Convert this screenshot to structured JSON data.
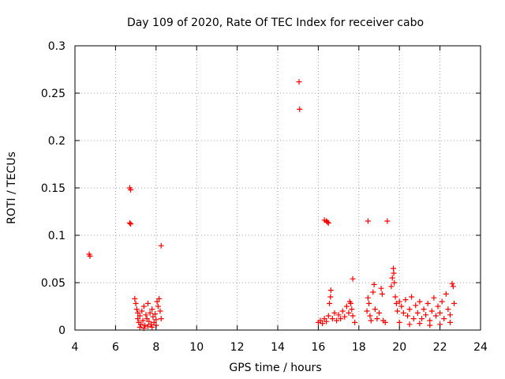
{
  "chart_data": {
    "type": "scatter",
    "title": "Day 109 of 2020, Rate Of TEC Index for receiver cabo",
    "xlabel": "GPS time / hours",
    "ylabel": "ROTI / TECUs",
    "xlim": [
      4,
      24
    ],
    "ylim": [
      0,
      0.3
    ],
    "xticks": [
      4,
      6,
      8,
      10,
      12,
      14,
      16,
      18,
      20,
      22,
      24
    ],
    "xtick_labels": [
      "4",
      "6",
      "8",
      "10",
      "12",
      "14",
      "16",
      "18",
      "20",
      "22",
      "24"
    ],
    "yticks": [
      0,
      0.05,
      0.1,
      0.15,
      0.2,
      0.25,
      0.3
    ],
    "ytick_labels": [
      "0",
      "0.05",
      "0.1",
      "0.15",
      "0.2",
      "0.25",
      "0.3"
    ],
    "grid": true,
    "marker": "+",
    "marker_color": "#ff0000",
    "points": [
      [
        4.7,
        0.08
      ],
      [
        4.74,
        0.078
      ],
      [
        6.7,
        0.15
      ],
      [
        6.75,
        0.148
      ],
      [
        6.7,
        0.113
      ],
      [
        6.75,
        0.112
      ],
      [
        8.25,
        0.089
      ],
      [
        15.05,
        0.262
      ],
      [
        15.08,
        0.233
      ],
      [
        16.3,
        0.116
      ],
      [
        16.4,
        0.115
      ],
      [
        16.45,
        0.114
      ],
      [
        16.5,
        0.113
      ],
      [
        17.7,
        0.054
      ],
      [
        18.45,
        0.115
      ],
      [
        19.4,
        0.115
      ],
      [
        6.95,
        0.033
      ],
      [
        7.0,
        0.028
      ],
      [
        7.05,
        0.022
      ],
      [
        7.1,
        0.018
      ],
      [
        7.1,
        0.012
      ],
      [
        7.15,
        0.008
      ],
      [
        7.2,
        0.015
      ],
      [
        7.25,
        0.006
      ],
      [
        7.3,
        0.02
      ],
      [
        7.35,
        0.01
      ],
      [
        7.4,
        0.025
      ],
      [
        7.45,
        0.005
      ],
      [
        7.5,
        0.016
      ],
      [
        7.55,
        0.012
      ],
      [
        7.6,
        0.028
      ],
      [
        7.65,
        0.009
      ],
      [
        7.7,
        0.018
      ],
      [
        7.75,
        0.006
      ],
      [
        7.8,
        0.022
      ],
      [
        7.85,
        0.014
      ],
      [
        7.9,
        0.008
      ],
      [
        7.95,
        0.017
      ],
      [
        8.0,
        0.011
      ],
      [
        8.05,
        0.03
      ],
      [
        8.1,
        0.025
      ],
      [
        8.15,
        0.033
      ],
      [
        8.2,
        0.02
      ],
      [
        8.25,
        0.012
      ],
      [
        7.2,
        0.003
      ],
      [
        7.4,
        0.002
      ],
      [
        7.6,
        0.004
      ],
      [
        7.8,
        0.003
      ],
      [
        8.0,
        0.005
      ],
      [
        16.0,
        0.008
      ],
      [
        16.1,
        0.01
      ],
      [
        16.2,
        0.007
      ],
      [
        16.3,
        0.012
      ],
      [
        16.4,
        0.009
      ],
      [
        16.5,
        0.015
      ],
      [
        16.55,
        0.028
      ],
      [
        16.6,
        0.035
      ],
      [
        16.62,
        0.042
      ],
      [
        16.7,
        0.012
      ],
      [
        16.8,
        0.018
      ],
      [
        16.9,
        0.01
      ],
      [
        17.0,
        0.016
      ],
      [
        17.1,
        0.012
      ],
      [
        17.2,
        0.02
      ],
      [
        17.3,
        0.014
      ],
      [
        17.4,
        0.025
      ],
      [
        17.5,
        0.018
      ],
      [
        17.55,
        0.03
      ],
      [
        17.6,
        0.028
      ],
      [
        17.65,
        0.022
      ],
      [
        17.7,
        0.015
      ],
      [
        17.8,
        0.008
      ],
      [
        18.4,
        0.02
      ],
      [
        18.45,
        0.034
      ],
      [
        18.5,
        0.028
      ],
      [
        18.55,
        0.015
      ],
      [
        18.6,
        0.01
      ],
      [
        18.7,
        0.04
      ],
      [
        18.75,
        0.048
      ],
      [
        18.8,
        0.022
      ],
      [
        18.9,
        0.012
      ],
      [
        19.0,
        0.018
      ],
      [
        19.1,
        0.044
      ],
      [
        19.15,
        0.038
      ],
      [
        19.2,
        0.01
      ],
      [
        19.3,
        0.008
      ],
      [
        19.6,
        0.046
      ],
      [
        19.65,
        0.055
      ],
      [
        19.7,
        0.065
      ],
      [
        19.72,
        0.06
      ],
      [
        19.75,
        0.05
      ],
      [
        19.8,
        0.035
      ],
      [
        19.85,
        0.028
      ],
      [
        19.9,
        0.02
      ],
      [
        20.0,
        0.03
      ],
      [
        20.1,
        0.025
      ],
      [
        20.2,
        0.018
      ],
      [
        20.3,
        0.032
      ],
      [
        20.4,
        0.015
      ],
      [
        20.5,
        0.022
      ],
      [
        20.6,
        0.035
      ],
      [
        20.7,
        0.012
      ],
      [
        20.8,
        0.026
      ],
      [
        20.9,
        0.018
      ],
      [
        21.0,
        0.03
      ],
      [
        21.1,
        0.012
      ],
      [
        21.2,
        0.022
      ],
      [
        21.3,
        0.016
      ],
      [
        21.4,
        0.028
      ],
      [
        21.5,
        0.01
      ],
      [
        21.6,
        0.02
      ],
      [
        21.7,
        0.034
      ],
      [
        21.8,
        0.015
      ],
      [
        21.9,
        0.025
      ],
      [
        22.0,
        0.018
      ],
      [
        22.1,
        0.03
      ],
      [
        22.2,
        0.012
      ],
      [
        22.3,
        0.038
      ],
      [
        22.4,
        0.022
      ],
      [
        22.5,
        0.016
      ],
      [
        22.6,
        0.049
      ],
      [
        22.65,
        0.046
      ],
      [
        22.7,
        0.028
      ],
      [
        20.0,
        0.008
      ],
      [
        20.5,
        0.006
      ],
      [
        21.0,
        0.007
      ],
      [
        21.5,
        0.005
      ],
      [
        22.0,
        0.006
      ],
      [
        22.5,
        0.008
      ]
    ]
  }
}
